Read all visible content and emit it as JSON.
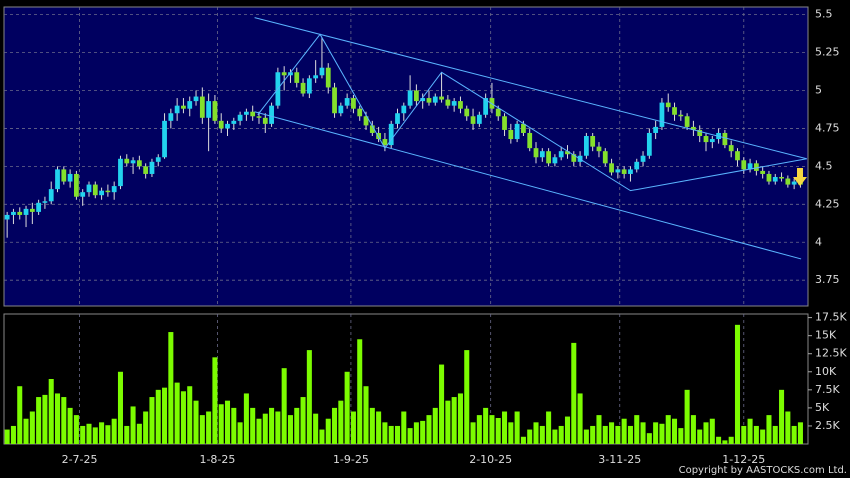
{
  "chart_data": {
    "type": "candlestick",
    "up_color": "#22d3ee",
    "down_color": "#84e02c",
    "volume_color": "#7cfc00",
    "grid": true,
    "xlim": [
      -0.5,
      127.2
    ],
    "xticks": [
      {
        "value": 11.5,
        "label": "2-7-25"
      },
      {
        "value": 33.4,
        "label": "1-8-25"
      },
      {
        "value": 54.6,
        "label": "1-9-25"
      },
      {
        "value": 76.8,
        "label": "2-10-25"
      },
      {
        "value": 97.3,
        "label": "3-11-25"
      },
      {
        "value": 117,
        "label": "1-12-25"
      }
    ],
    "ylim": [
      3.58,
      5.55
    ],
    "yticks": [
      3.75,
      4,
      4.25,
      4.5,
      4.75,
      5,
      5.25,
      5.5
    ],
    "y2lim": [
      0,
      18000
    ],
    "y2ticks": [
      {
        "value": 2500,
        "label": "2.5K"
      },
      {
        "value": 5000,
        "label": "5K"
      },
      {
        "value": 7500,
        "label": "7.5K"
      },
      {
        "value": 10000,
        "label": "10K"
      },
      {
        "value": 12500,
        "label": "12.5K"
      },
      {
        "value": 15000,
        "label": "15K"
      },
      {
        "value": 17500,
        "label": "17.5K"
      }
    ],
    "ohlc": [
      [
        4.15,
        4.2,
        4.03,
        4.18
      ],
      [
        4.18,
        4.22,
        4.12,
        4.2
      ],
      [
        4.2,
        4.23,
        4.15,
        4.18
      ],
      [
        4.18,
        4.24,
        4.1,
        4.22
      ],
      [
        4.22,
        4.26,
        4.12,
        4.2
      ],
      [
        4.2,
        4.28,
        4.18,
        4.26
      ],
      [
        4.26,
        4.3,
        4.22,
        4.27
      ],
      [
        4.27,
        4.4,
        4.25,
        4.35
      ],
      [
        4.35,
        4.5,
        4.33,
        4.48
      ],
      [
        4.48,
        4.5,
        4.38,
        4.4
      ],
      [
        4.4,
        4.48,
        4.36,
        4.45
      ],
      [
        4.45,
        4.47,
        4.28,
        4.3
      ],
      [
        4.3,
        4.35,
        4.24,
        4.33
      ],
      [
        4.33,
        4.4,
        4.3,
        4.38
      ],
      [
        4.38,
        4.4,
        4.29,
        4.31
      ],
      [
        4.31,
        4.36,
        4.28,
        4.34
      ],
      [
        4.34,
        4.38,
        4.3,
        4.33
      ],
      [
        4.33,
        4.4,
        4.28,
        4.37
      ],
      [
        4.37,
        4.57,
        4.35,
        4.55
      ],
      [
        4.55,
        4.58,
        4.5,
        4.52
      ],
      [
        4.52,
        4.56,
        4.45,
        4.54
      ],
      [
        4.54,
        4.57,
        4.48,
        4.5
      ],
      [
        4.5,
        4.52,
        4.42,
        4.45
      ],
      [
        4.45,
        4.55,
        4.43,
        4.53
      ],
      [
        4.53,
        4.58,
        4.5,
        4.56
      ],
      [
        4.56,
        4.85,
        4.55,
        4.8
      ],
      [
        4.8,
        4.88,
        4.75,
        4.85
      ],
      [
        4.85,
        4.95,
        4.8,
        4.9
      ],
      [
        4.9,
        4.95,
        4.85,
        4.88
      ],
      [
        4.88,
        4.96,
        4.83,
        4.93
      ],
      [
        4.93,
        5.0,
        4.9,
        4.96
      ],
      [
        4.96,
        5.02,
        4.78,
        4.82
      ],
      [
        4.82,
        4.98,
        4.6,
        4.93
      ],
      [
        4.93,
        4.97,
        4.78,
        4.8
      ],
      [
        4.8,
        4.85,
        4.72,
        4.75
      ],
      [
        4.75,
        4.8,
        4.7,
        4.78
      ],
      [
        4.78,
        4.82,
        4.74,
        4.8
      ],
      [
        4.8,
        4.86,
        4.77,
        4.84
      ],
      [
        4.84,
        4.88,
        4.8,
        4.86
      ],
      [
        4.86,
        4.9,
        4.8,
        4.83
      ],
      [
        4.83,
        4.86,
        4.78,
        4.82
      ],
      [
        4.82,
        4.85,
        4.72,
        4.78
      ],
      [
        4.78,
        4.92,
        4.76,
        4.9
      ],
      [
        4.9,
        5.15,
        4.88,
        5.12
      ],
      [
        5.12,
        5.16,
        5.0,
        5.1
      ],
      [
        5.1,
        5.14,
        5.05,
        5.12
      ],
      [
        5.12,
        5.15,
        5.02,
        5.05
      ],
      [
        5.05,
        5.08,
        4.96,
        4.98
      ],
      [
        4.98,
        5.1,
        4.95,
        5.08
      ],
      [
        5.08,
        5.2,
        5.05,
        5.1
      ],
      [
        5.1,
        5.35,
        5.08,
        5.15
      ],
      [
        5.15,
        5.18,
        4.98,
        5.02
      ],
      [
        5.02,
        5.05,
        4.82,
        4.85
      ],
      [
        4.85,
        4.92,
        4.83,
        4.9
      ],
      [
        4.9,
        4.98,
        4.88,
        4.95
      ],
      [
        4.95,
        4.97,
        4.85,
        4.88
      ],
      [
        4.88,
        4.9,
        4.8,
        4.83
      ],
      [
        4.83,
        4.86,
        4.74,
        4.77
      ],
      [
        4.77,
        4.8,
        4.7,
        4.72
      ],
      [
        4.72,
        4.76,
        4.66,
        4.68
      ],
      [
        4.68,
        4.72,
        4.6,
        4.64
      ],
      [
        4.64,
        4.8,
        4.62,
        4.78
      ],
      [
        4.78,
        4.88,
        4.75,
        4.85
      ],
      [
        4.85,
        4.92,
        4.8,
        4.9
      ],
      [
        4.9,
        5.1,
        4.88,
        5.0
      ],
      [
        5.0,
        5.04,
        4.9,
        4.93
      ],
      [
        4.93,
        4.98,
        4.88,
        4.95
      ],
      [
        4.95,
        5.0,
        4.9,
        4.92
      ],
      [
        4.92,
        4.98,
        4.9,
        4.96
      ],
      [
        4.96,
        5.12,
        4.92,
        4.94
      ],
      [
        4.94,
        4.97,
        4.88,
        4.9
      ],
      [
        4.9,
        4.95,
        4.86,
        4.93
      ],
      [
        4.93,
        4.96,
        4.85,
        4.88
      ],
      [
        4.88,
        4.9,
        4.8,
        4.83
      ],
      [
        4.83,
        4.88,
        4.74,
        4.78
      ],
      [
        4.78,
        4.86,
        4.76,
        4.84
      ],
      [
        4.84,
        4.98,
        4.82,
        4.95
      ],
      [
        4.95,
        5.05,
        4.85,
        4.88
      ],
      [
        4.88,
        4.9,
        4.8,
        4.83
      ],
      [
        4.83,
        4.85,
        4.7,
        4.74
      ],
      [
        4.74,
        4.78,
        4.65,
        4.68
      ],
      [
        4.68,
        4.8,
        4.66,
        4.78
      ],
      [
        4.78,
        4.8,
        4.7,
        4.72
      ],
      [
        4.72,
        4.75,
        4.6,
        4.62
      ],
      [
        4.62,
        4.66,
        4.52,
        4.56
      ],
      [
        4.56,
        4.62,
        4.53,
        4.6
      ],
      [
        4.6,
        4.62,
        4.5,
        4.52
      ],
      [
        4.52,
        4.58,
        4.5,
        4.56
      ],
      [
        4.56,
        4.63,
        4.54,
        4.6
      ],
      [
        4.6,
        4.64,
        4.55,
        4.58
      ],
      [
        4.58,
        4.6,
        4.5,
        4.53
      ],
      [
        4.53,
        4.6,
        4.5,
        4.57
      ],
      [
        4.57,
        4.72,
        4.55,
        4.7
      ],
      [
        4.7,
        4.72,
        4.6,
        4.63
      ],
      [
        4.63,
        4.66,
        4.56,
        4.6
      ],
      [
        4.6,
        4.62,
        4.5,
        4.52
      ],
      [
        4.52,
        4.55,
        4.44,
        4.46
      ],
      [
        4.46,
        4.5,
        4.42,
        4.48
      ],
      [
        4.48,
        4.5,
        4.42,
        4.45
      ],
      [
        4.45,
        4.5,
        4.4,
        4.48
      ],
      [
        4.48,
        4.55,
        4.46,
        4.53
      ],
      [
        4.53,
        4.6,
        4.5,
        4.57
      ],
      [
        4.57,
        4.75,
        4.55,
        4.72
      ],
      [
        4.72,
        4.8,
        4.68,
        4.76
      ],
      [
        4.76,
        4.95,
        4.74,
        4.92
      ],
      [
        4.92,
        4.98,
        4.86,
        4.89
      ],
      [
        4.89,
        4.92,
        4.8,
        4.84
      ],
      [
        4.84,
        4.87,
        4.8,
        4.83
      ],
      [
        4.83,
        4.85,
        4.74,
        4.76
      ],
      [
        4.76,
        4.8,
        4.7,
        4.74
      ],
      [
        4.74,
        4.77,
        4.66,
        4.7
      ],
      [
        4.7,
        4.72,
        4.6,
        4.66
      ],
      [
        4.66,
        4.7,
        4.62,
        4.68
      ],
      [
        4.68,
        4.75,
        4.65,
        4.72
      ],
      [
        4.72,
        4.74,
        4.62,
        4.64
      ],
      [
        4.64,
        4.67,
        4.56,
        4.6
      ],
      [
        4.6,
        4.62,
        4.5,
        4.54
      ],
      [
        4.54,
        4.56,
        4.45,
        4.48
      ],
      [
        4.48,
        4.55,
        4.46,
        4.52
      ],
      [
        4.52,
        4.54,
        4.44,
        4.47
      ],
      [
        4.47,
        4.5,
        4.42,
        4.45
      ],
      [
        4.45,
        4.47,
        4.38,
        4.4
      ],
      [
        4.4,
        4.45,
        4.38,
        4.43
      ],
      [
        4.43,
        4.46,
        4.4,
        4.42
      ],
      [
        4.42,
        4.44,
        4.36,
        4.38
      ],
      [
        4.38,
        4.42,
        4.35,
        4.4
      ],
      [
        4.4,
        4.44,
        4.36,
        4.38
      ]
    ],
    "volume": [
      2000,
      2500,
      8000,
      3500,
      4500,
      6500,
      6800,
      9000,
      7000,
      6500,
      5000,
      4000,
      2500,
      2800,
      2300,
      3000,
      2600,
      3500,
      10000,
      2500,
      5200,
      2800,
      4500,
      6500,
      7500,
      7800,
      15500,
      8500,
      7300,
      8000,
      6000,
      4000,
      4500,
      12000,
      5500,
      6000,
      5000,
      3000,
      7000,
      5000,
      3500,
      4200,
      5000,
      4500,
      10500,
      4000,
      5000,
      6500,
      13000,
      4200,
      2000,
      3500,
      5000,
      6000,
      10000,
      4500,
      14500,
      8000,
      5000,
      4500,
      3000,
      2500,
      2500,
      4500,
      2200,
      3000,
      3200,
      4000,
      5000,
      11000,
      6000,
      6500,
      7000,
      13000,
      3000,
      4000,
      5000,
      4000,
      3600,
      4500,
      3000,
      4500,
      1000,
      2000,
      3000,
      2500,
      4500,
      2000,
      2500,
      3800,
      14000,
      7000,
      2000,
      2500,
      4000,
      2500,
      3000,
      2500,
      3500,
      2500,
      4000,
      3000,
      1500,
      3000,
      2800,
      4000,
      3500,
      2200,
      7500,
      4000,
      2000,
      3000,
      3500,
      1000,
      500,
      1000,
      16500,
      2500,
      3500,
      2500,
      2000,
      4000,
      2500,
      7500,
      4500,
      2500,
      3000
    ],
    "trendlines": [
      {
        "x": [
          39.3,
          127
        ],
        "y": [
          5.48,
          4.55
        ]
      },
      {
        "x": [
          39.3,
          126.1
        ],
        "y": [
          4.86,
          3.89
        ]
      },
      {
        "x": [
          39.8,
          49.7,
          60,
          69,
          99,
          127
        ],
        "y": [
          4.84,
          5.37,
          4.62,
          5.12,
          4.34,
          4.55
        ]
      }
    ],
    "trendline_color": "#5ab4ff",
    "copyright": "Copyright by AASTOCKS.com Ltd."
  }
}
